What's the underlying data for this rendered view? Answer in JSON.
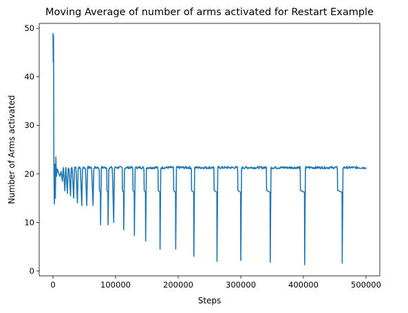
{
  "colors": {
    "series": "#1f77b4",
    "axes": "#000000",
    "background": "#ffffff"
  },
  "chart_data": {
    "type": "line",
    "title": "Moving Average of number of arms activated for Restart Example",
    "xlabel": "Steps",
    "ylabel": "Number of Arms activated",
    "xlim": [
      -22000,
      522000
    ],
    "ylim": [
      -1,
      51
    ],
    "xticks": [
      0,
      100000,
      200000,
      300000,
      400000,
      500000
    ],
    "xtick_labels": [
      "0",
      "100000",
      "200000",
      "300000",
      "400000",
      "500000"
    ],
    "yticks": [
      0,
      10,
      20,
      30,
      40,
      50
    ],
    "ytick_labels": [
      "0",
      "10",
      "20",
      "30",
      "40",
      "50"
    ],
    "grid": false,
    "legend": "none",
    "series": [
      {
        "baseline": 21.3,
        "initial_spike": [
          {
            "x": 0,
            "y": 49
          },
          {
            "x": 400,
            "y": 43
          },
          {
            "x": 900,
            "y": 48.5
          },
          {
            "x": 1500,
            "y": 20
          },
          {
            "x": 2200,
            "y": 13.8
          },
          {
            "x": 3000,
            "y": 22
          },
          {
            "x": 3800,
            "y": 15
          },
          {
            "x": 4600,
            "y": 23.5
          },
          {
            "x": 5500,
            "y": 19.5
          },
          {
            "x": 7000,
            "y": 21
          },
          {
            "x": 9000,
            "y": 20.2
          },
          {
            "x": 11000,
            "y": 19.5
          },
          {
            "x": 13000,
            "y": 20.5
          }
        ],
        "dips": [
          {
            "x": 15000,
            "y": 18.5
          },
          {
            "x": 19000,
            "y": 16.5
          },
          {
            "x": 23000,
            "y": 16
          },
          {
            "x": 28000,
            "y": 15.5
          },
          {
            "x": 33000,
            "y": 15
          },
          {
            "x": 39000,
            "y": 14
          },
          {
            "x": 46000,
            "y": 13.5
          },
          {
            "x": 54000,
            "y": 13.5
          },
          {
            "x": 64000,
            "y": 13.5
          },
          {
            "x": 76000,
            "y": 9.5
          },
          {
            "x": 88000,
            "y": 9.5
          },
          {
            "x": 97000,
            "y": 10
          },
          {
            "x": 113000,
            "y": 8.5
          },
          {
            "x": 130000,
            "y": 7.3
          },
          {
            "x": 148000,
            "y": 6.2
          },
          {
            "x": 171000,
            "y": 4.5
          },
          {
            "x": 196000,
            "y": 4.5
          },
          {
            "x": 225000,
            "y": 3
          },
          {
            "x": 262000,
            "y": 2
          },
          {
            "x": 300000,
            "y": 2.2
          },
          {
            "x": 347000,
            "y": 1.8
          },
          {
            "x": 402000,
            "y": 1.3
          },
          {
            "x": 462000,
            "y": 1.6
          }
        ],
        "end_x": 500000
      }
    ]
  }
}
